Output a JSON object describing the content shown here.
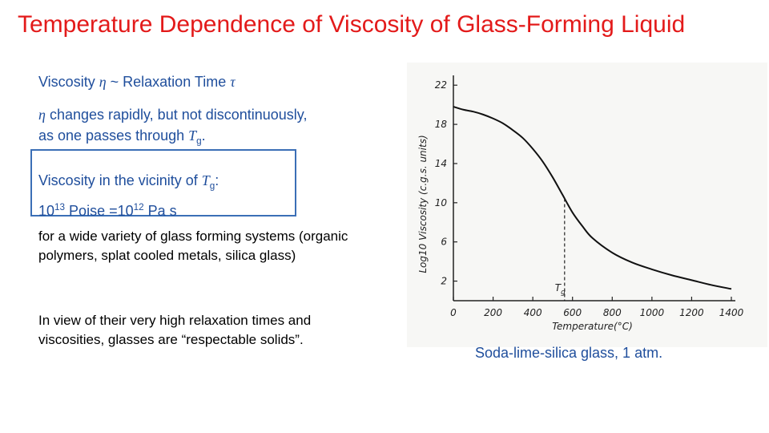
{
  "title": "Temperature Dependence of Viscosity of Glass-Forming Liquid",
  "line1": {
    "pre": "Viscosity ",
    "eta": "η",
    "mid": " ~ Relaxation Time ",
    "tau": "τ"
  },
  "line2": {
    "eta": "η",
    "text_a": "  changes rapidly, but not discontinuously,",
    "text_b": "as   one passes through ",
    "T": "T",
    "g": "g",
    "end": "."
  },
  "box": {
    "pre": "Viscosity in the vicinity of ",
    "T": "T",
    "g": "g",
    "colon": ":",
    "b1": "10",
    "e1": "13",
    "mid": " Poise =10",
    "e2": "12",
    "post": " Pa s"
  },
  "para1": "for a wide variety of glass forming systems (organic polymers, splat cooled metals, silica glass)",
  "para2": "In view of their very high relaxation times and viscosities, glasses are “respectable solids”.",
  "caption": "Soda-lime-silica glass, 1 atm.",
  "chart_data": {
    "type": "line",
    "x": [
      0,
      50,
      100,
      150,
      200,
      250,
      300,
      350,
      400,
      450,
      500,
      550,
      600,
      650,
      700,
      800,
      900,
      1000,
      1100,
      1200,
      1300,
      1400
    ],
    "y": [
      19.8,
      19.5,
      19.3,
      19.0,
      18.6,
      18.1,
      17.4,
      16.6,
      15.5,
      14.2,
      12.6,
      10.8,
      9.0,
      7.6,
      6.4,
      4.9,
      3.9,
      3.2,
      2.6,
      2.1,
      1.6,
      1.2
    ],
    "xlabel": "Temperature(°C)",
    "ylabel": "Log10 Viscosity (c.g.s. units)",
    "xticks": [
      "0",
      "200",
      "400",
      "600",
      "800",
      "1000",
      "1200",
      "1400"
    ],
    "yticks": [
      "2",
      "6",
      "10",
      "14",
      "18",
      "22"
    ],
    "xlim": [
      0,
      1400
    ],
    "ylim": [
      0,
      23
    ],
    "annotation": {
      "label_T": "T",
      "label_g": "g",
      "x": 560
    }
  }
}
